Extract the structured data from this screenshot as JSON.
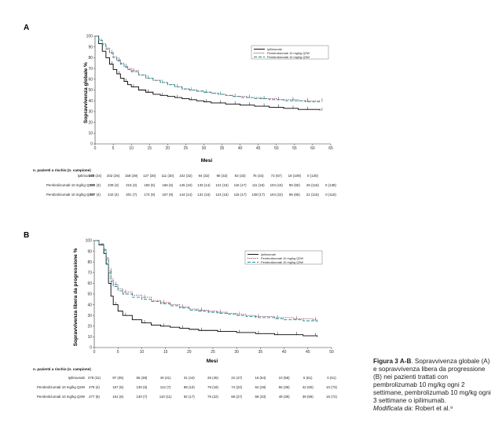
{
  "panels": [
    {
      "label": "A",
      "chart_data": {
        "type": "line",
        "ylabel": "Sopravvivenza globale %",
        "xlabel": "Mesi",
        "xlim": [
          0,
          65
        ],
        "ylim": [
          0,
          100
        ],
        "xticks": [
          0,
          5,
          10,
          15,
          20,
          25,
          30,
          35,
          40,
          45,
          50,
          55,
          60,
          65
        ],
        "yticks": [
          0,
          10,
          20,
          30,
          40,
          50,
          60,
          70,
          80,
          90,
          100
        ],
        "legend_position": "top-right",
        "series": [
          {
            "name": "Ipilimumab",
            "color": "#000000",
            "dash": "solid",
            "x": [
              0,
              1,
              2,
              3,
              4,
              5,
              6,
              7,
              8,
              9,
              10,
              12,
              14,
              16,
              18,
              20,
              22,
              24,
              26,
              28,
              30,
              32,
              34,
              36,
              38,
              40,
              42,
              44,
              46,
              48,
              50,
              52,
              54,
              56,
              58,
              60,
              62
            ],
            "y": [
              100,
              93,
              86,
              80,
              74,
              69,
              65,
              61,
              58,
              55,
              53,
              50,
              48,
              46,
              45,
              44,
              43,
              42,
              41,
              40,
              39,
              38,
              38,
              37,
              37,
              36,
              36,
              35,
              35,
              34,
              34,
              33,
              33,
              32,
              32,
              32,
              31
            ]
          },
          {
            "name": "Pembrolizumab 10 mg/kg Q2W",
            "color": "#8b3a5a",
            "dash": "dotted",
            "x": [
              0,
              1,
              2,
              3,
              4,
              5,
              6,
              7,
              8,
              9,
              10,
              12,
              14,
              16,
              18,
              20,
              22,
              24,
              26,
              28,
              30,
              32,
              34,
              36,
              38,
              40,
              42,
              44,
              46,
              48,
              50,
              52,
              54,
              56,
              58,
              60,
              62
            ],
            "y": [
              100,
              97,
              93,
              89,
              85,
              81,
              78,
              75,
              72,
              70,
              68,
              64,
              61,
              59,
              57,
              55,
              53,
              51,
              50,
              49,
              48,
              47,
              46,
              45,
              44,
              44,
              43,
              43,
              42,
              42,
              41,
              41,
              41,
              40,
              40,
              40,
              40
            ]
          },
          {
            "name": "Pembrolizumab 10 mg/kg Q3W",
            "color": "#1a8a86",
            "dash": "dashed",
            "x": [
              0,
              1,
              2,
              3,
              4,
              5,
              6,
              7,
              8,
              9,
              10,
              12,
              14,
              16,
              18,
              20,
              22,
              24,
              26,
              28,
              30,
              32,
              34,
              36,
              38,
              40,
              42,
              44,
              46,
              48,
              50,
              52,
              54,
              56,
              58,
              60,
              62
            ],
            "y": [
              100,
              96,
              92,
              88,
              84,
              80,
              77,
              74,
              71,
              69,
              67,
              64,
              61,
              59,
              57,
              55,
              53,
              51,
              50,
              49,
              48,
              47,
              46,
              45,
              44,
              43,
              43,
              42,
              42,
              41,
              41,
              40,
              40,
              40,
              39,
              39,
              39
            ]
          }
        ]
      },
      "risk": {
        "title": "n. pazienti a rischio (n. campione)",
        "rows": [
          {
            "label": "Ipilimumab",
            "color": "#222222",
            "values": [
              "278 (24)",
              "202 (26)",
              "158 (29)",
              "127 (30)",
              "111 (30)",
              "102 (32)",
              "94 (32)",
              "90 (32)",
              "83 (33)",
              "75 (34)",
              "72 (67)",
              "18 (109)",
              "0 (130)"
            ]
          },
          {
            "label": "Pembrolizumab 10 mg/kg Q2W",
            "color": "#8b3a5a",
            "values": [
              "279 (3)",
              "239 (3)",
              "215 (3)",
              "183 (5)",
              "166 (6)",
              "145 (10)",
              "133 (14)",
              "121 (16)",
              "116 (17)",
              "111 (18)",
              "104 (15)",
              "96 (50)",
              "26 (116)",
              "0 (138)"
            ]
          },
          {
            "label": "Pembrolizumab 10 mg/kg Q3W",
            "color": "#1a8a86",
            "values": [
              "277 (4)",
              "242 (4)",
              "201 (7)",
              "174 (9)",
              "157 (9)",
              "144 (14)",
              "131 (16)",
              "124 (16)",
              "115 (17)",
              "108 (17)",
              "104 (22)",
              "96 (65)",
              "21 (116)",
              "0 (116)"
            ]
          }
        ]
      }
    },
    {
      "label": "B",
      "chart_data": {
        "type": "line",
        "ylabel": "Sopravvivenza libera da progressione %",
        "xlabel": "Mesi",
        "xlim": [
          0,
          50
        ],
        "ylim": [
          0,
          100
        ],
        "xticks": [
          0,
          5,
          10,
          15,
          20,
          25,
          30,
          35,
          40,
          45,
          50
        ],
        "yticks": [
          0,
          10,
          20,
          30,
          40,
          50,
          60,
          70,
          80,
          90,
          100
        ],
        "legend_position": "top-right",
        "series": [
          {
            "name": "Ipilimumab",
            "color": "#000000",
            "dash": "solid",
            "x": [
              0,
              1,
              2,
              2.5,
              3,
              3.5,
              4,
              5,
              6,
              8,
              10,
              12,
              14,
              16,
              18,
              20,
              22,
              24,
              26,
              28,
              30,
              32,
              34,
              36,
              38,
              40,
              42,
              44,
              46,
              47
            ],
            "y": [
              100,
              96,
              88,
              78,
              60,
              48,
              40,
              34,
              30,
              26,
              23,
              21,
              20,
              19,
              18,
              17,
              16,
              16,
              15,
              15,
              14,
              14,
              13,
              13,
              12,
              12,
              12,
              11,
              11,
              10
            ]
          },
          {
            "name": "Pembrolizumab 10 mg/kg Q2W",
            "color": "#8b3a5a",
            "dash": "dotted",
            "x": [
              0,
              1,
              2,
              2.5,
              3,
              3.5,
              4,
              5,
              6,
              8,
              10,
              12,
              14,
              16,
              18,
              20,
              22,
              24,
              26,
              28,
              30,
              32,
              34,
              36,
              38,
              40,
              42,
              44,
              46,
              47
            ],
            "y": [
              100,
              97,
              92,
              84,
              72,
              64,
              59,
              55,
              52,
              49,
              47,
              44,
              42,
              40,
              38,
              36,
              35,
              34,
              33,
              32,
              31,
              30,
              29,
              29,
              28,
              28,
              27,
              27,
              26,
              26
            ]
          },
          {
            "name": "Pembrolizumab 10 mg/kg Q3W",
            "color": "#1a8a86",
            "dash": "dashed",
            "x": [
              0,
              1,
              2,
              2.5,
              3,
              3.5,
              4,
              5,
              6,
              8,
              10,
              12,
              14,
              16,
              18,
              20,
              22,
              24,
              26,
              28,
              30,
              32,
              34,
              36,
              38,
              40,
              42,
              44,
              46,
              47
            ],
            "y": [
              100,
              97,
              91,
              83,
              70,
              62,
              57,
              53,
              50,
              47,
              45,
              43,
              41,
              39,
              37,
              35,
              34,
              33,
              32,
              31,
              30,
              29,
              28,
              28,
              27,
              26,
              26,
              25,
              25,
              24
            ]
          }
        ]
      },
      "risk": {
        "title": "n. pazienti a rischio (n. campione)",
        "rows": [
          {
            "label": "Ipilimumab",
            "color": "#222222",
            "values": [
              "278 (31)",
              "97 (35)",
              "55 (38)",
              "40 (41)",
              "31 (44)",
              "25 (45)",
              "22 (47)",
              "16 (54)",
              "10 (58)",
              "6 (61)",
              "0 (61)"
            ]
          },
          {
            "label": "Pembrolizumab 10 mg/kg Q2W",
            "color": "#8b3a5a",
            "values": [
              "279 (4)",
              "157 (5)",
              "130 (6)",
              "112 (7)",
              "98 (10)",
              "79 (18)",
              "74 (22)",
              "64 (29)",
              "56 (39)",
              "42 (60)",
              "10 (73)"
            ]
          },
          {
            "label": "Pembrolizumab 10 mg/kg Q3W",
            "color": "#1a8a86",
            "values": [
              "277 (5)",
              "161 (6)",
              "130 (7)",
              "110 (11)",
              "92 (17)",
              "75 (22)",
              "68 (27)",
              "59 (33)",
              "49 (39)",
              "39 (59)",
              "16 (72)"
            ]
          }
        ]
      }
    }
  ],
  "caption": {
    "figure": "Figura 3 A-B",
    "text": ". Sopravvivenza globale (A) e sopravvivenza libera da progressione (B) nei pazienti trattati con pembrolizumab 10 mg/kg ogni 2 settimane, pembrolizumab 10 mg/kg ogni 3 settimane o ipilimumab.",
    "modified_label": "Modificata da",
    "modified_source": ": Robert et al.⁹"
  }
}
